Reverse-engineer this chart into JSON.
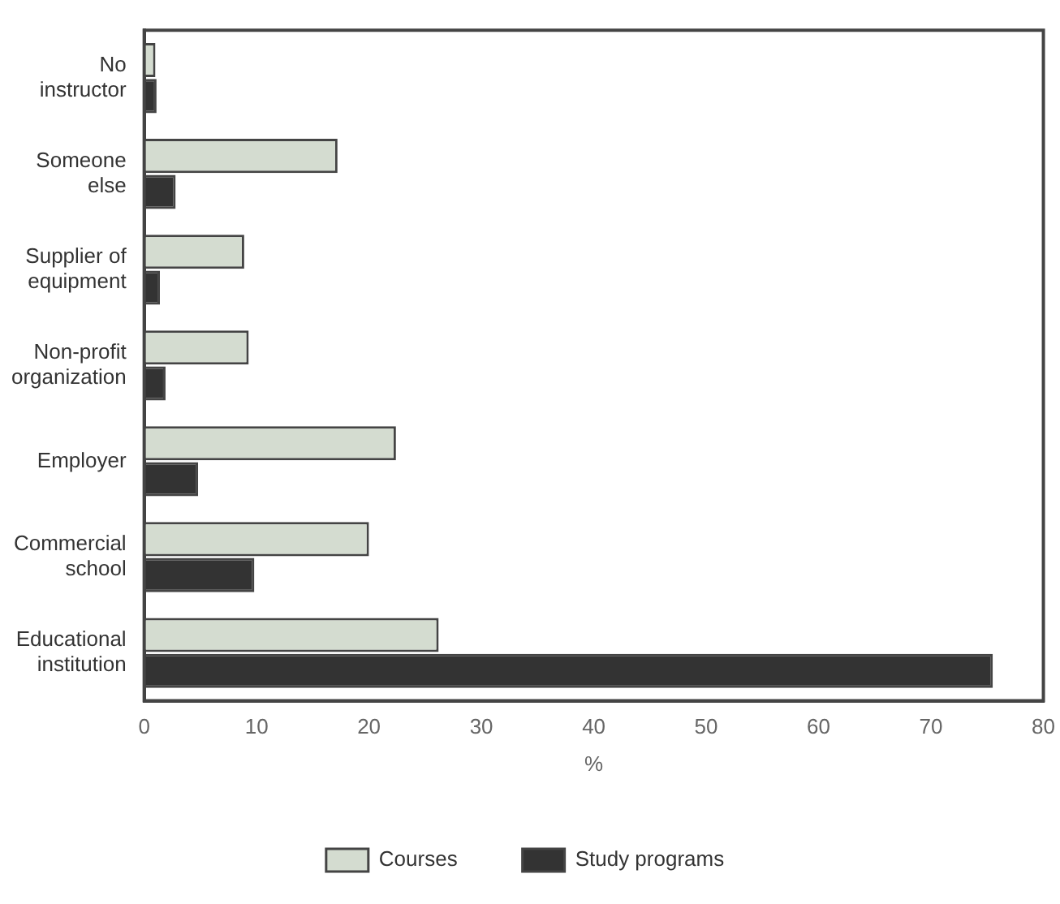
{
  "chart_data": {
    "type": "bar",
    "orientation": "horizontal",
    "xlabel": "%",
    "categories": [
      "No instructor",
      "Someone else",
      "Supplier of equipment",
      "Non-profit organization",
      "Employer",
      "Commercial school",
      "Educational institution"
    ],
    "series": [
      {
        "name": "Courses",
        "color": "#d4dcd0",
        "values": [
          1,
          17.2,
          8.9,
          9.3,
          22.4,
          20,
          26.2
        ]
      },
      {
        "name": "Study programs",
        "color": "#333333",
        "values": [
          1.1,
          2.8,
          1.4,
          1.9,
          4.8,
          9.8,
          75.5
        ]
      }
    ],
    "xlim": [
      0,
      80
    ],
    "xticks": [
      0,
      10,
      20,
      30,
      40,
      50,
      60,
      70,
      80
    ],
    "grid": false,
    "legend": "bottom"
  }
}
